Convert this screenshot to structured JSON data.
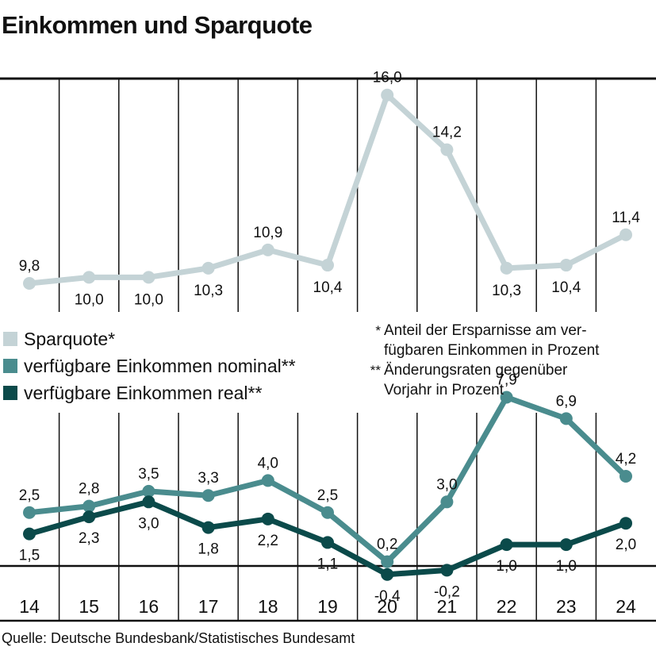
{
  "title": "Einkommen und Sparquote",
  "source": "Quelle: Deutsche Bundesbank/Statistisches Bundesamt",
  "legend": [
    {
      "label": "Sparquote*",
      "color": "#c4d3d6"
    },
    {
      "label": "verfügbare Einkommen nominal**",
      "color": "#4a8c8e"
    },
    {
      "label": "verfügbare Einkommen real**",
      "color": "#0b4a4a"
    }
  ],
  "notes": [
    {
      "mark": "*",
      "lines": [
        "Anteil der Ersparnisse am ver-",
        "fügbaren Einkommen in Prozent"
      ]
    },
    {
      "mark": "**",
      "lines": [
        "Änderungsraten gegenüber",
        "Vorjahr in Prozent"
      ]
    }
  ],
  "chart_data": [
    {
      "type": "line",
      "categories": [
        "14",
        "15",
        "16",
        "17",
        "18",
        "19",
        "20",
        "21",
        "22",
        "23",
        "24"
      ],
      "series": [
        {
          "name": "Sparquote*",
          "color": "#c4d3d6",
          "values": [
            9.8,
            10.0,
            10.0,
            10.3,
            10.9,
            10.4,
            16.0,
            14.2,
            10.3,
            10.4,
            11.4
          ],
          "labels": [
            "9,8",
            "10,0",
            "10,0",
            "10,3",
            "10,9",
            "10,4",
            "16,0",
            "14,2",
            "10,3",
            "10,4",
            "11,4"
          ]
        }
      ]
    },
    {
      "type": "line",
      "categories": [
        "14",
        "15",
        "16",
        "17",
        "18",
        "19",
        "20",
        "21",
        "22",
        "23",
        "24"
      ],
      "series": [
        {
          "name": "verfügbare Einkommen nominal**",
          "color": "#4a8c8e",
          "values": [
            2.5,
            2.8,
            3.5,
            3.3,
            4.0,
            2.5,
            0.2,
            3.0,
            7.9,
            6.9,
            4.2
          ],
          "labels": [
            "2,5",
            "2,8",
            "3,5",
            "3,3",
            "4,0",
            "2,5",
            "0,2",
            "3,0",
            "7,9",
            "6,9",
            "4,2"
          ]
        },
        {
          "name": "verfügbare Einkommen real**",
          "color": "#0b4a4a",
          "values": [
            1.5,
            2.3,
            3.0,
            1.8,
            2.2,
            1.1,
            -0.4,
            -0.2,
            1.0,
            1.0,
            2.0
          ],
          "labels": [
            "1,5",
            "2,3",
            "3,0",
            "1,8",
            "2,2",
            "1,1",
            "-0,4",
            "-0,2",
            "1,0",
            "1,0",
            "2,0"
          ]
        }
      ]
    }
  ]
}
